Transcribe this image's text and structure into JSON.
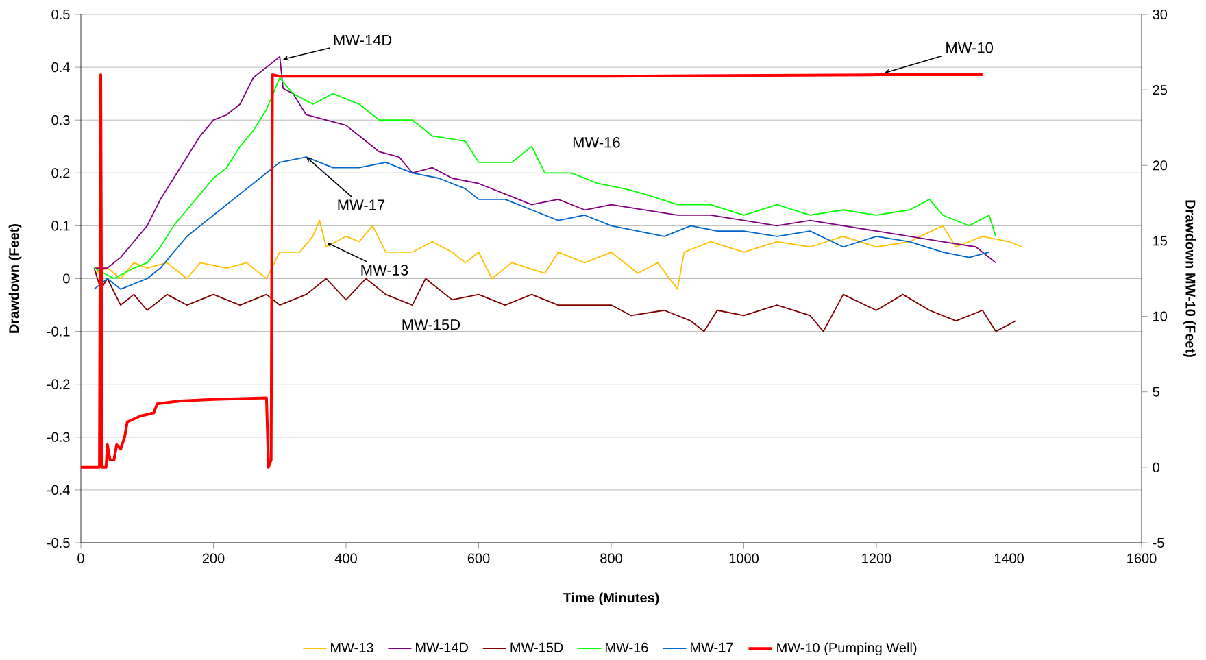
{
  "chart_data": {
    "type": "line",
    "xlabel": "Time (Minutes)",
    "ylabel": "Drawdown (Feet)",
    "y2label": "Drawdown MW-10 (Feet)",
    "xlim": [
      0,
      1600
    ],
    "xticks": [
      0,
      200,
      400,
      600,
      800,
      1000,
      1200,
      1400,
      1600
    ],
    "ylim": [
      -0.5,
      0.5
    ],
    "yticks": [
      -0.5,
      -0.4,
      -0.3,
      -0.2,
      -0.1,
      0,
      0.1,
      0.2,
      0.3,
      0.4,
      0.5
    ],
    "y2lim": [
      -5,
      30
    ],
    "y2ticks": [
      -5,
      0,
      5,
      10,
      15,
      20,
      25,
      30
    ],
    "grid": "y",
    "legend": "bottom",
    "line_style": "solid",
    "series": [
      {
        "name": "MW-13",
        "color": "#ffc000",
        "x": [
          20,
          40,
          60,
          80,
          100,
          130,
          160,
          180,
          220,
          250,
          280,
          300,
          330,
          350,
          360,
          370,
          400,
          420,
          440,
          460,
          500,
          530,
          560,
          580,
          600,
          620,
          650,
          700,
          720,
          760,
          800,
          840,
          870,
          900,
          910,
          950,
          1000,
          1050,
          1100,
          1150,
          1200,
          1250,
          1300,
          1320,
          1360,
          1400,
          1420
        ],
        "values": [
          0.01,
          0.02,
          0.0,
          0.03,
          0.02,
          0.03,
          0.0,
          0.03,
          0.02,
          0.03,
          0.0,
          0.05,
          0.05,
          0.08,
          0.11,
          0.06,
          0.08,
          0.07,
          0.1,
          0.05,
          0.05,
          0.07,
          0.05,
          0.03,
          0.05,
          0.0,
          0.03,
          0.01,
          0.05,
          0.03,
          0.05,
          0.01,
          0.03,
          -0.02,
          0.05,
          0.07,
          0.05,
          0.07,
          0.06,
          0.08,
          0.06,
          0.07,
          0.1,
          0.06,
          0.08,
          0.07,
          0.06
        ]
      },
      {
        "name": "MW-14D",
        "color": "#800080",
        "x": [
          20,
          40,
          60,
          80,
          100,
          120,
          140,
          160,
          180,
          200,
          220,
          240,
          260,
          280,
          300,
          305,
          320,
          340,
          370,
          400,
          420,
          450,
          480,
          500,
          530,
          560,
          600,
          640,
          680,
          720,
          760,
          800,
          850,
          900,
          950,
          1000,
          1050,
          1100,
          1150,
          1200,
          1250,
          1300,
          1350,
          1380
        ],
        "values": [
          0.02,
          0.02,
          0.04,
          0.07,
          0.1,
          0.15,
          0.19,
          0.23,
          0.27,
          0.3,
          0.31,
          0.33,
          0.38,
          0.4,
          0.42,
          0.36,
          0.35,
          0.31,
          0.3,
          0.29,
          0.27,
          0.24,
          0.23,
          0.2,
          0.21,
          0.19,
          0.18,
          0.16,
          0.14,
          0.15,
          0.13,
          0.14,
          0.13,
          0.12,
          0.12,
          0.11,
          0.1,
          0.11,
          0.1,
          0.09,
          0.08,
          0.07,
          0.06,
          0.03
        ]
      },
      {
        "name": "MW-15D",
        "color": "#800000",
        "x": [
          20,
          30,
          40,
          60,
          80,
          100,
          130,
          160,
          200,
          240,
          280,
          300,
          340,
          370,
          400,
          430,
          460,
          500,
          520,
          560,
          600,
          640,
          680,
          720,
          800,
          830,
          880,
          920,
          940,
          960,
          1000,
          1050,
          1100,
          1120,
          1150,
          1200,
          1240,
          1280,
          1320,
          1360,
          1380,
          1410
        ],
        "values": [
          0.02,
          -0.02,
          0.0,
          -0.05,
          -0.03,
          -0.06,
          -0.03,
          -0.05,
          -0.03,
          -0.05,
          -0.03,
          -0.05,
          -0.03,
          0.0,
          -0.04,
          0.0,
          -0.03,
          -0.05,
          0.0,
          -0.04,
          -0.03,
          -0.05,
          -0.03,
          -0.05,
          -0.05,
          -0.07,
          -0.06,
          -0.08,
          -0.1,
          -0.06,
          -0.07,
          -0.05,
          -0.07,
          -0.1,
          -0.03,
          -0.06,
          -0.03,
          -0.06,
          -0.08,
          -0.06,
          -0.1,
          -0.08
        ]
      },
      {
        "name": "MW-16",
        "color": "#00ff00",
        "x": [
          20,
          50,
          80,
          100,
          120,
          140,
          160,
          180,
          200,
          220,
          240,
          260,
          280,
          290,
          300,
          320,
          350,
          380,
          420,
          450,
          500,
          530,
          580,
          600,
          650,
          680,
          700,
          740,
          780,
          820,
          850,
          900,
          950,
          1000,
          1050,
          1100,
          1150,
          1200,
          1250,
          1280,
          1300,
          1340,
          1370,
          1380
        ],
        "values": [
          0.02,
          0.0,
          0.02,
          0.03,
          0.06,
          0.1,
          0.13,
          0.16,
          0.19,
          0.21,
          0.25,
          0.28,
          0.32,
          0.35,
          0.38,
          0.35,
          0.33,
          0.35,
          0.33,
          0.3,
          0.3,
          0.27,
          0.26,
          0.22,
          0.22,
          0.25,
          0.2,
          0.2,
          0.18,
          0.17,
          0.16,
          0.14,
          0.14,
          0.12,
          0.14,
          0.12,
          0.13,
          0.12,
          0.13,
          0.15,
          0.12,
          0.1,
          0.12,
          0.08
        ]
      },
      {
        "name": "MW-17",
        "color": "#0066cc",
        "x": [
          20,
          40,
          60,
          100,
          120,
          140,
          160,
          180,
          200,
          220,
          240,
          260,
          280,
          300,
          340,
          380,
          420,
          460,
          500,
          540,
          580,
          600,
          640,
          680,
          720,
          760,
          800,
          840,
          880,
          920,
          960,
          1000,
          1050,
          1100,
          1150,
          1200,
          1250,
          1300,
          1340,
          1370
        ],
        "values": [
          -0.02,
          0.0,
          -0.02,
          0.0,
          0.02,
          0.05,
          0.08,
          0.1,
          0.12,
          0.14,
          0.16,
          0.18,
          0.2,
          0.22,
          0.23,
          0.21,
          0.21,
          0.22,
          0.2,
          0.19,
          0.17,
          0.15,
          0.15,
          0.13,
          0.11,
          0.12,
          0.1,
          0.09,
          0.08,
          0.1,
          0.09,
          0.09,
          0.08,
          0.09,
          0.06,
          0.08,
          0.07,
          0.05,
          0.04,
          0.05
        ]
      },
      {
        "name": "MW-10 (Pumping Well)",
        "color": "#ff0000",
        "axis": "y2",
        "x": [
          0,
          28,
          30,
          32,
          38,
          40,
          44,
          50,
          54,
          60,
          66,
          70,
          90,
          110,
          115,
          150,
          200,
          280,
          283,
          287,
          289,
          300,
          800,
          1200,
          1360
        ],
        "values": [
          0,
          0,
          26,
          0,
          0,
          1.5,
          0.5,
          0.5,
          1.5,
          1.2,
          2,
          3.0,
          3.4,
          3.6,
          4.2,
          4.4,
          4.5,
          4.6,
          0,
          0.5,
          26,
          25.9,
          25.9,
          26.0,
          26.0
        ]
      }
    ],
    "annotations": [
      {
        "text": "MW-14D",
        "x": 305,
        "y": 0.415
      },
      {
        "text": "MW-10",
        "x": 1212,
        "y": 0.389
      },
      "MW-16",
      {
        "text": "MW-17",
        "x": 340,
        "y": 0.23
      },
      {
        "text": "MW-13",
        "x": 371,
        "y": 0.068
      },
      "MW-15D"
    ]
  }
}
